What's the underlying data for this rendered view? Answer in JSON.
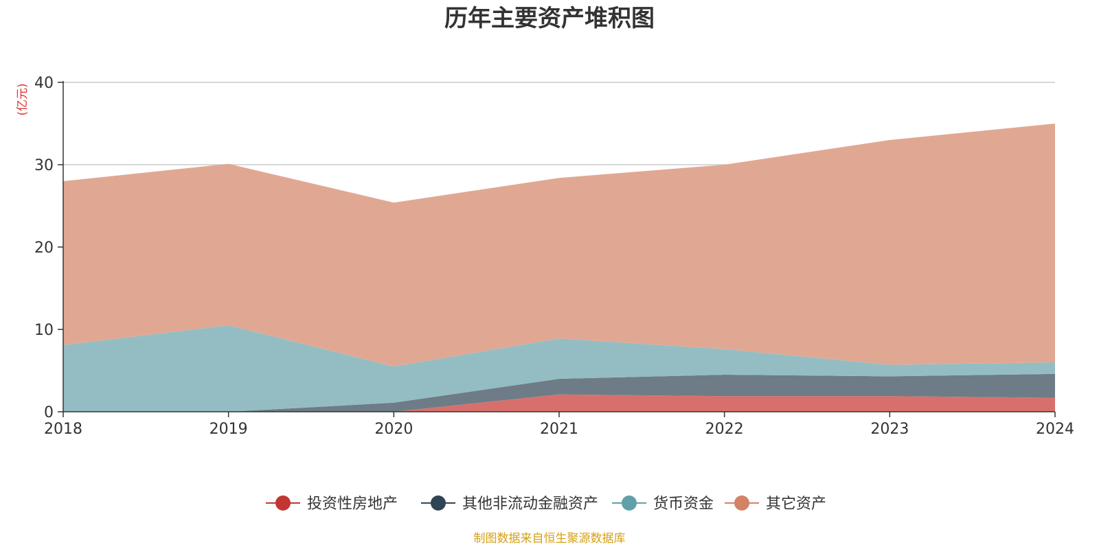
{
  "chart_data": {
    "type": "area",
    "stacked": true,
    "title": "历年主要资产堆积图",
    "unit": "(亿元)",
    "x": [
      "2018",
      "2019",
      "2020",
      "2021",
      "2022",
      "2023",
      "2024"
    ],
    "ylim": [
      0,
      40
    ],
    "yticks": [
      0,
      10,
      20,
      30,
      40
    ],
    "grid": true,
    "legend_position": "bottom",
    "series": [
      {
        "name": "投资性房地产",
        "color": "#c23531",
        "area_color": "#d7706c",
        "values": [
          0,
          0,
          0,
          2.1,
          1.9,
          1.9,
          1.7
        ]
      },
      {
        "name": "其他非流动金融资产",
        "color": "#2f4554",
        "area_color": "#6e7c87",
        "values": [
          0,
          0,
          1.1,
          1.9,
          2.6,
          2.4,
          2.9
        ]
      },
      {
        "name": "货币资金",
        "color": "#61a0a8",
        "area_color": "#94bdc3",
        "values": [
          8.1,
          10.5,
          4.4,
          4.9,
          3.1,
          1.4,
          1.4
        ]
      },
      {
        "name": "其它资产",
        "color": "#d48265",
        "area_color": "#e0a893",
        "values": [
          19.9,
          19.6,
          19.9,
          19.5,
          22.4,
          27.3,
          29.0
        ]
      }
    ],
    "source": "制图数据来自恒生聚源数据库"
  }
}
